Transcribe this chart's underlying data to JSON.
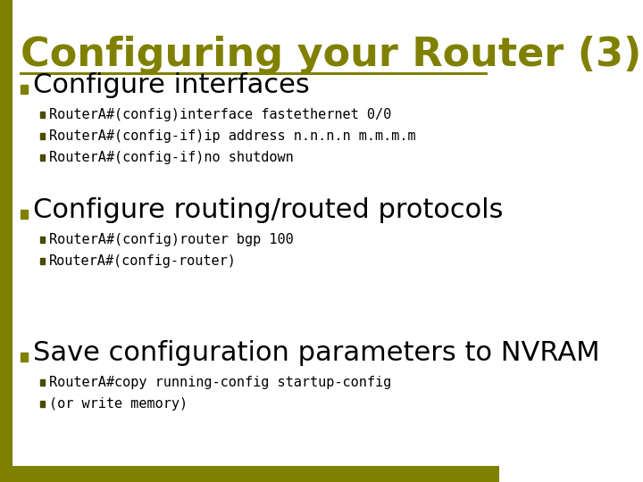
{
  "title": "Configuring your Router (3)",
  "title_color": "#808000",
  "title_fontsize": 32,
  "bg_color": "#ffffff",
  "line_color": "#808000",
  "bullet_color": "#808000",
  "sub_bullet_color": "#4a4a00",
  "bullet_square_color": "#808000",
  "sub_square_color": "#4a4a00",
  "sections": [
    {
      "heading": "Configure interfaces",
      "heading_fontsize": 22,
      "items": [
        "RouterA#(config)interface fastethernet 0/0",
        "RouterA#(config-if)ip address n.n.n.n m.m.m.m",
        "RouterA#(config-if)no shutdown"
      ]
    },
    {
      "heading": "Configure routing/routed protocols",
      "heading_fontsize": 22,
      "items": [
        "RouterA#(config)router bgp 100",
        "RouterA#(config-router)"
      ]
    },
    {
      "heading": "Save configuration parameters to NVRAM",
      "heading_fontsize": 22,
      "items": [
        "RouterA#copy running-config startup-config",
        "(or write memory)"
      ]
    }
  ]
}
